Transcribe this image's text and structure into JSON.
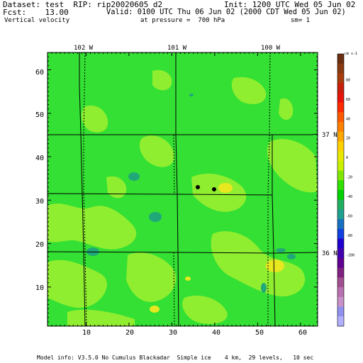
{
  "header": {
    "dataset_line": "Dataset: test  RIP: rip20020605 d2",
    "fcst_line": "Fcst:    13.00",
    "field_line": "Vertical velocity",
    "init_line": "Init: 1200 UTC Wed 05 Jun 02",
    "valid_line": "Valid: 0100 UTC Thu 06 Jun 02 (2000 CDT Wed 05 Jun 02)",
    "pressure_line": "at pressure =  700 hPa",
    "sm_line": "sm= 1"
  },
  "map": {
    "longitude_labels": [
      "102 W",
      "101 W",
      "100 W"
    ],
    "latitude_labels": [
      "37 N",
      "36 N"
    ],
    "x_ticks": [
      "10",
      "20",
      "30",
      "40",
      "50",
      "60"
    ],
    "y_ticks": [
      "10",
      "20",
      "30",
      "40",
      "50",
      "60"
    ],
    "x_range": [
      1,
      64
    ],
    "y_range": [
      1,
      64
    ]
  },
  "colorbar": {
    "units": "cm s-1",
    "labels": [
      "80",
      "60",
      "40",
      "20",
      "0",
      "-20",
      "-40",
      "-60",
      "-80",
      "-100"
    ],
    "colors": [
      "#6b2e10",
      "#8a3a10",
      "#a83c0c",
      "#c81e0a",
      "#e8140a",
      "#ff2a00",
      "#ff5a00",
      "#ff8000",
      "#ffa800",
      "#ffd000",
      "#e8e800",
      "#c8f000",
      "#80e800",
      "#30e000",
      "#00d000",
      "#20b060",
      "#20a090",
      "#1870c0",
      "#1040e0",
      "#2000d0",
      "#4000b0",
      "#600090",
      "#802080",
      "#a05090",
      "#b870b0",
      "#c890c8",
      "#9090f0",
      "#b0b0ff"
    ]
  },
  "footer": "Model info: V3.5.0 No Cumulus Blackadar  Simple ice    4 km,  29 levels,   10 sec"
}
